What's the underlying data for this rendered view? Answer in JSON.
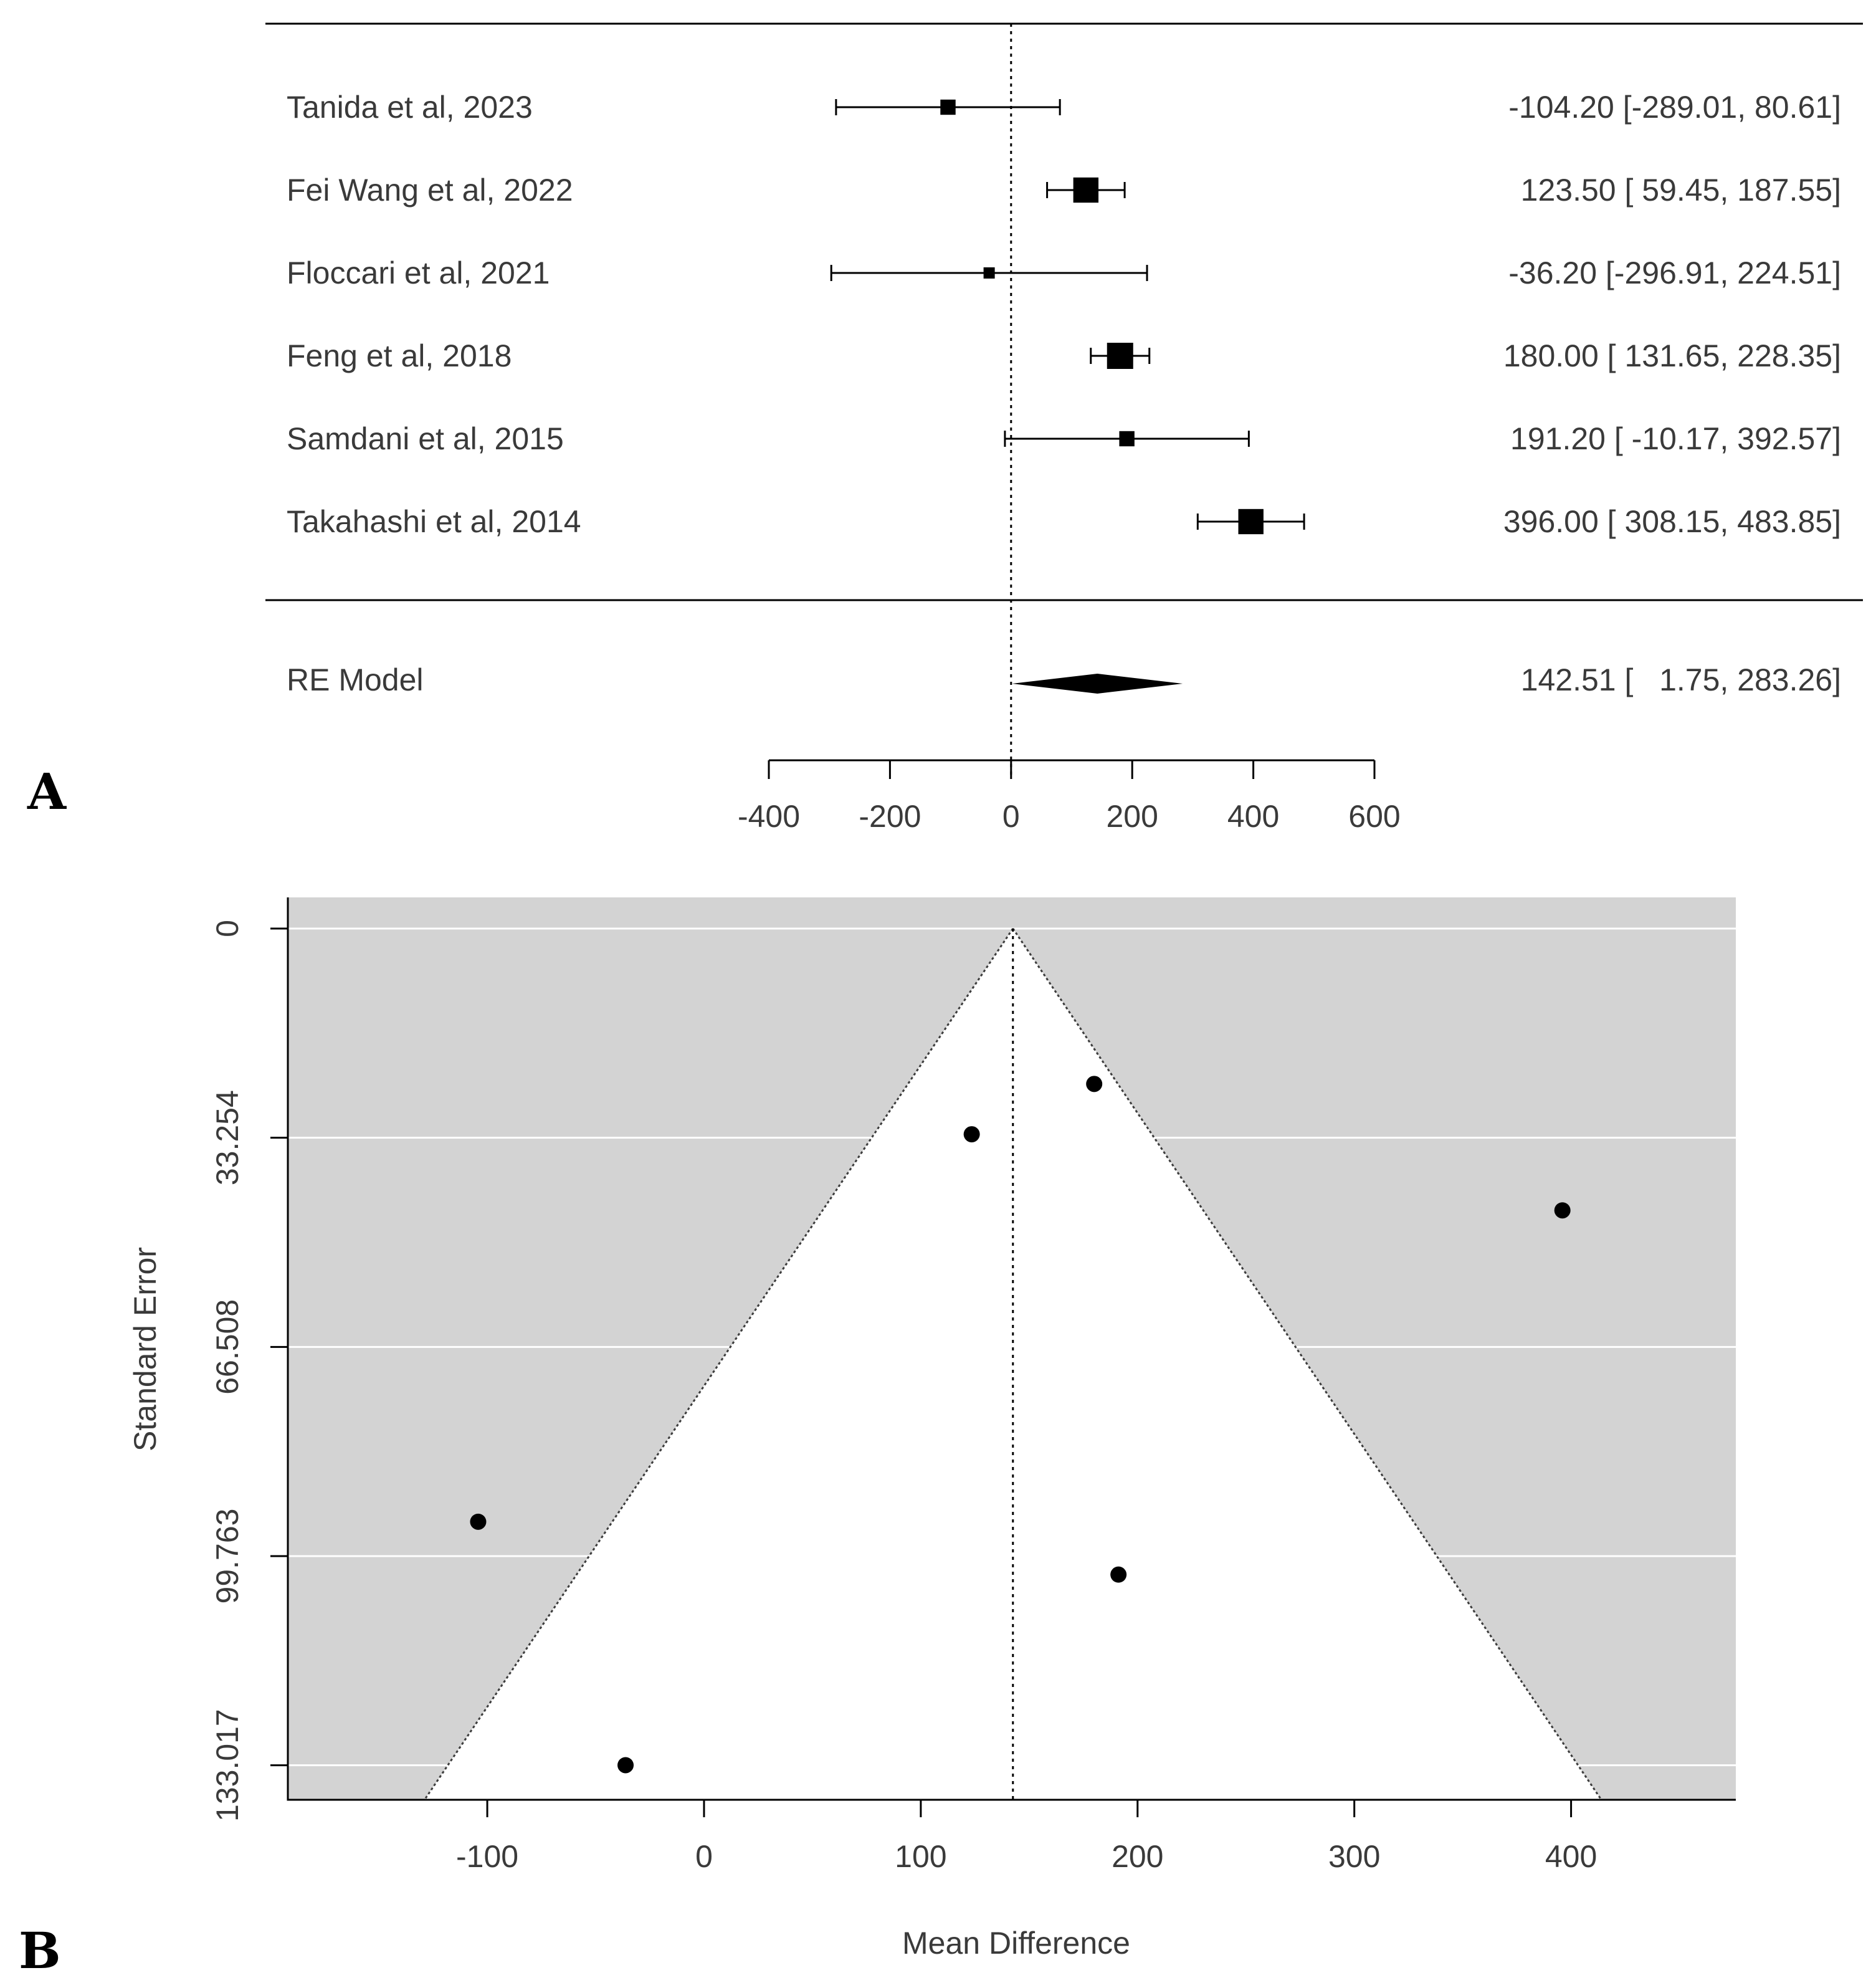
{
  "colors": {
    "ink": "#000000",
    "text": "#3a3a3a",
    "funnel_bg": "#d3d3d3",
    "funnel_inner": "#ffffff",
    "gridline": "#ffffff"
  },
  "chart_data": [
    {
      "panel_label": "A",
      "type": "forest",
      "xlim": [
        -400,
        600
      ],
      "ticks": [
        -400,
        -200,
        0,
        200,
        400,
        600
      ],
      "tick_labels": [
        "-400",
        "-200",
        "0",
        "200",
        "400",
        "600"
      ],
      "studies": [
        {
          "label": "Tanida et al, 2023",
          "est": -104.2,
          "lo": -289.01,
          "hi": 80.61,
          "text": "-104.20 [-289.01,  80.61]",
          "weight": 0.9
        },
        {
          "label": "Fei Wang et al, 2022",
          "est": 123.5,
          "lo": 59.45,
          "hi": 187.55,
          "text": "123.50 [  59.45, 187.55]",
          "weight": 1.9
        },
        {
          "label": "Floccari et al, 2021",
          "est": -36.2,
          "lo": -296.91,
          "hi": 224.51,
          "text": "-36.20 [-296.91, 224.51]",
          "weight": 0.5
        },
        {
          "label": "Feng et al, 2018",
          "est": 180.0,
          "lo": 131.65,
          "hi": 228.35,
          "text": "180.00 [ 131.65, 228.35]",
          "weight": 2.0
        },
        {
          "label": "Samdani et al, 2015",
          "est": 191.2,
          "lo": -10.17,
          "hi": 392.57,
          "text": "191.20 [ -10.17, 392.57]",
          "weight": 0.9
        },
        {
          "label": "Takahashi et al, 2014",
          "est": 396.0,
          "lo": 308.15,
          "hi": 483.85,
          "text": "396.00 [ 308.15, 483.85]",
          "weight": 1.9
        }
      ],
      "summary": {
        "label": "RE Model",
        "est": 142.51,
        "lo": 1.75,
        "hi": 283.26,
        "text": "142.51 [   1.75, 283.26]"
      }
    },
    {
      "panel_label": "B",
      "type": "funnel",
      "xlabel": "Mean Difference",
      "ylabel": "Standard Error",
      "xlim": [
        -192,
        476
      ],
      "ylim": [
        0,
        138.5
      ],
      "x_ticks": [
        -100,
        0,
        100,
        200,
        300,
        400
      ],
      "x_tick_labels": [
        "-100",
        "0",
        "100",
        "200",
        "300",
        "400"
      ],
      "y_ticks": [
        0,
        33.254,
        66.508,
        99.763,
        133.017
      ],
      "y_tick_labels": [
        "0",
        "33.254",
        "66.508",
        "99.763",
        "133.017"
      ],
      "center": 142.51,
      "points": [
        {
          "x": -104.2,
          "se": 94.3
        },
        {
          "x": 123.5,
          "se": 32.7
        },
        {
          "x": -36.2,
          "se": 133.0
        },
        {
          "x": 180.0,
          "se": 24.7
        },
        {
          "x": 191.2,
          "se": 102.7
        },
        {
          "x": 396.0,
          "se": 44.8
        }
      ]
    }
  ]
}
